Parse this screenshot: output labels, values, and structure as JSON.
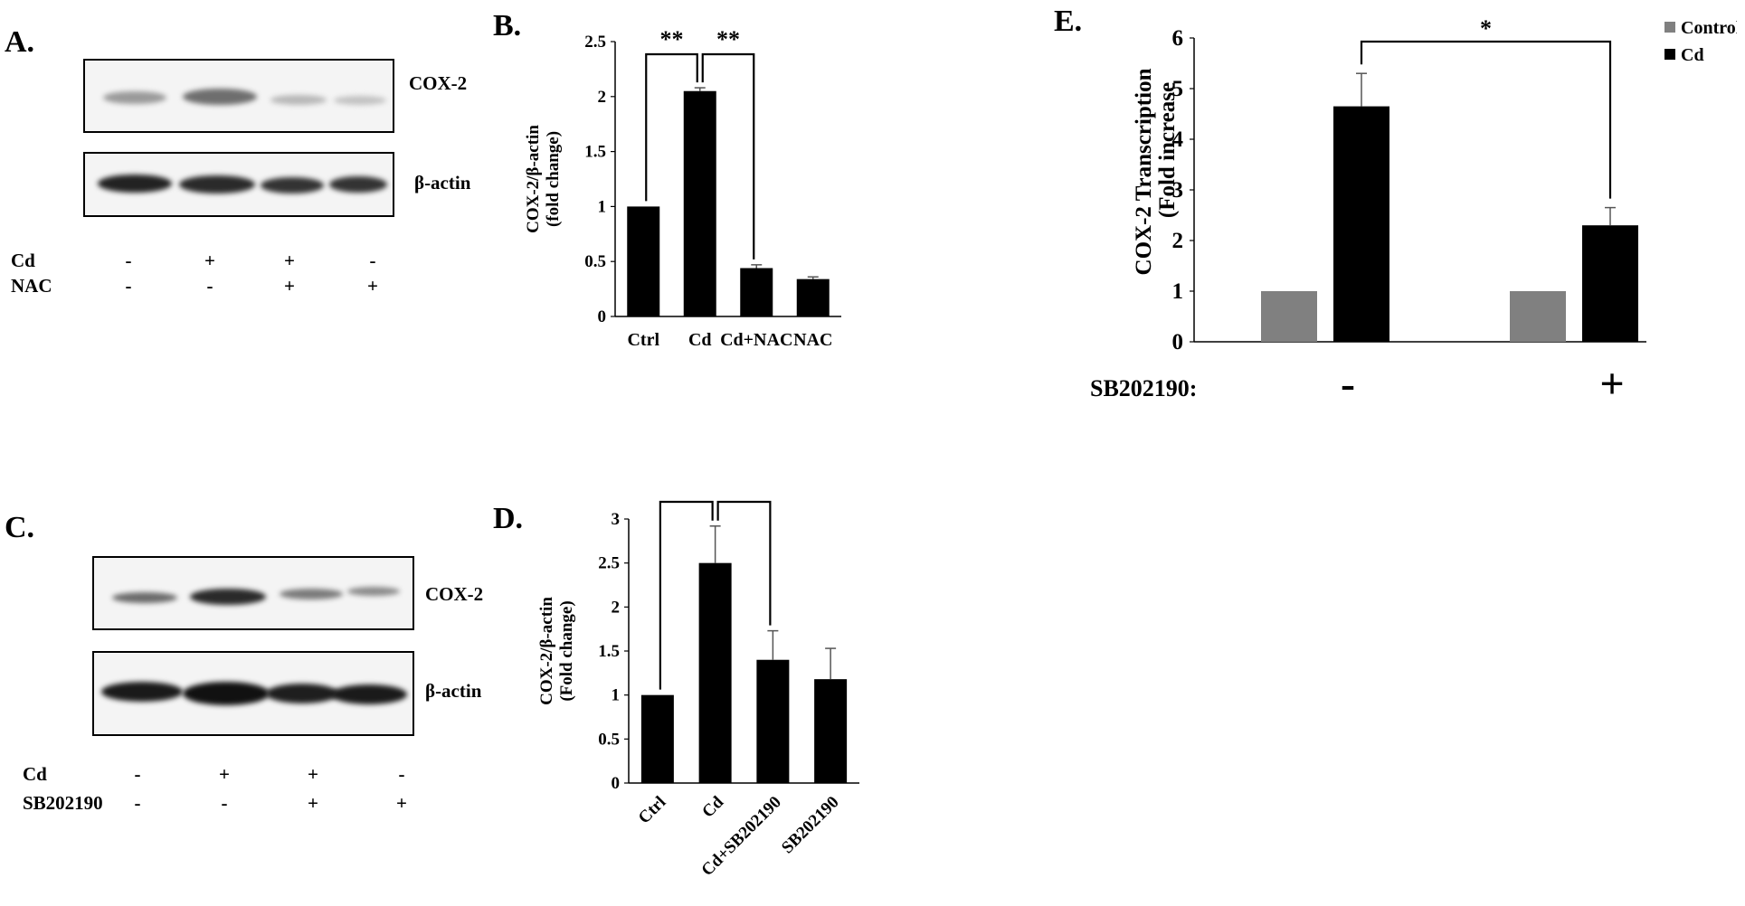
{
  "panels": {
    "A": {
      "letter": "A.",
      "blot_labels": [
        "COX-2",
        "β-actin"
      ],
      "conditions": [
        {
          "name": "Cd",
          "signs": [
            "-",
            "+",
            "+",
            "-"
          ]
        },
        {
          "name": "NAC",
          "signs": [
            "-",
            "-",
            "+",
            "+"
          ]
        }
      ]
    },
    "B": {
      "letter": "B."
    },
    "C": {
      "letter": "C.",
      "blot_labels": [
        "COX-2",
        "β-actin"
      ],
      "conditions": [
        {
          "name": "Cd",
          "signs": [
            "-",
            "+",
            "+",
            "-"
          ]
        },
        {
          "name": "SB202190",
          "signs": [
            "-",
            "-",
            "+",
            "+"
          ]
        }
      ]
    },
    "D": {
      "letter": "D."
    },
    "E": {
      "letter": "E.",
      "condition_label": "SB202190:",
      "condition_signs": [
        "-",
        "+"
      ]
    }
  },
  "chart_data": [
    {
      "id": "B",
      "type": "bar",
      "categories": [
        "Ctrl",
        "Cd",
        "Cd+NAC",
        "NAC"
      ],
      "values": [
        1.0,
        2.05,
        0.44,
        0.34
      ],
      "errors": [
        0.0,
        0.03,
        0.03,
        0.02
      ],
      "ylabel": [
        "COX-2/β-actin",
        "(fold change)"
      ],
      "ylim": [
        0,
        2.5
      ],
      "yticks": [
        "0",
        "0.5",
        "1",
        "1.5",
        "2",
        "2.5"
      ],
      "significance": [
        {
          "from": 0,
          "to": 1,
          "label": "**"
        },
        {
          "from": 1,
          "to": 2,
          "label": "**"
        }
      ],
      "color": "#000000"
    },
    {
      "id": "D",
      "type": "bar",
      "categories": [
        "Ctrl",
        "Cd",
        "Cd+SB202190",
        "SB202190"
      ],
      "values": [
        1.0,
        2.5,
        1.4,
        1.18
      ],
      "errors": [
        0.0,
        0.42,
        0.33,
        0.35
      ],
      "ylabel": [
        "COX-2/β-actin",
        "(Fold change)"
      ],
      "ylim": [
        0,
        3
      ],
      "yticks": [
        "0",
        "0.5",
        "1",
        "1.5",
        "2",
        "2.5",
        "3"
      ],
      "significance": [
        {
          "from": 0,
          "to": 1,
          "label": "*"
        },
        {
          "from": 1,
          "to": 2,
          "label": "*"
        }
      ],
      "color": "#000000"
    },
    {
      "id": "E",
      "type": "bar",
      "groups": [
        "-",
        "+"
      ],
      "series": [
        {
          "name": "Control",
          "values": [
            1.0,
            1.0
          ],
          "errors": [
            0.0,
            0.0
          ],
          "color": "#808080"
        },
        {
          "name": "Cd",
          "values": [
            4.65,
            2.3
          ],
          "errors": [
            0.65,
            0.35
          ],
          "color": "#000000"
        }
      ],
      "ylabel": [
        "COX-2 Transcription",
        "(Fold increase"
      ],
      "ylim": [
        0,
        6
      ],
      "yticks": [
        "0",
        "1",
        "2",
        "3",
        "4",
        "5",
        "6"
      ],
      "significance": [
        {
          "from": "g0-Cd",
          "to": "g1-Cd",
          "label": "*"
        }
      ],
      "legend_position": "top-right"
    }
  ]
}
